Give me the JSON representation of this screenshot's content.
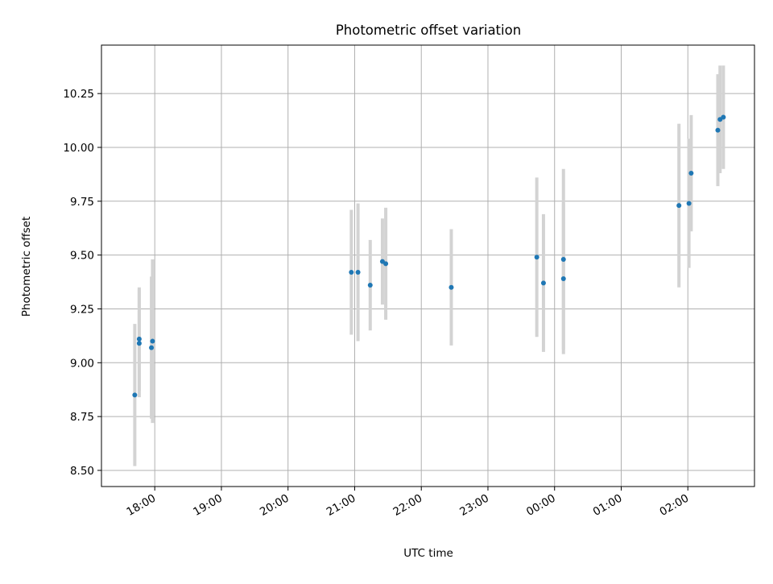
{
  "chart_data": {
    "type": "scatter",
    "title": "Photometric offset variation",
    "xlabel": "UTC time",
    "ylabel": "Photometric offset",
    "x_axis_type": "time",
    "x_tick_labels": [
      "18:00",
      "19:00",
      "20:00",
      "21:00",
      "22:00",
      "23:00",
      "00:00",
      "01:00",
      "02:00"
    ],
    "x_tick_hours": [
      18,
      19,
      20,
      21,
      22,
      23,
      24,
      25,
      26
    ],
    "xlim": [
      "17:12",
      "03:00"
    ],
    "y_ticks": [
      8.5,
      8.75,
      9.0,
      9.25,
      9.5,
      9.75,
      10.0,
      10.25
    ],
    "y_tick_labels": [
      "8.50",
      "8.75",
      "9.00",
      "9.25",
      "9.50",
      "9.75",
      "10.00",
      "10.25"
    ],
    "ylim": [
      8.425,
      10.475
    ],
    "grid": true,
    "marker_color": "#1f77b4",
    "errorbar_color": "#d3d3d3",
    "points": [
      {
        "x": "17:42",
        "y": 8.85,
        "err": 0.33
      },
      {
        "x": "17:46",
        "y": 9.09,
        "err": 0.25
      },
      {
        "x": "17:46",
        "y": 9.11,
        "err": 0.24
      },
      {
        "x": "17:57",
        "y": 9.07,
        "err": 0.33
      },
      {
        "x": "17:58",
        "y": 9.1,
        "err": 0.38
      },
      {
        "x": "20:57",
        "y": 9.42,
        "err": 0.29
      },
      {
        "x": "21:03",
        "y": 9.42,
        "err": 0.32
      },
      {
        "x": "21:14",
        "y": 9.36,
        "err": 0.21
      },
      {
        "x": "21:25",
        "y": 9.47,
        "err": 0.2
      },
      {
        "x": "21:28",
        "y": 9.46,
        "err": 0.26
      },
      {
        "x": "22:27",
        "y": 9.35,
        "err": 0.27
      },
      {
        "x": "23:44",
        "y": 9.49,
        "err": 0.37
      },
      {
        "x": "23:50",
        "y": 9.37,
        "err": 0.32
      },
      {
        "x": "00:08",
        "y": 9.48,
        "err": 0.42
      },
      {
        "x": "00:08",
        "y": 9.39,
        "err": 0.35
      },
      {
        "x": "01:52",
        "y": 9.73,
        "err": 0.38
      },
      {
        "x": "02:01",
        "y": 9.74,
        "err": 0.3
      },
      {
        "x": "02:03",
        "y": 9.88,
        "err": 0.27
      },
      {
        "x": "02:27",
        "y": 10.08,
        "err": 0.26
      },
      {
        "x": "02:29",
        "y": 10.13,
        "err": 0.25
      },
      {
        "x": "02:32",
        "y": 10.14,
        "err": 0.24
      }
    ]
  }
}
